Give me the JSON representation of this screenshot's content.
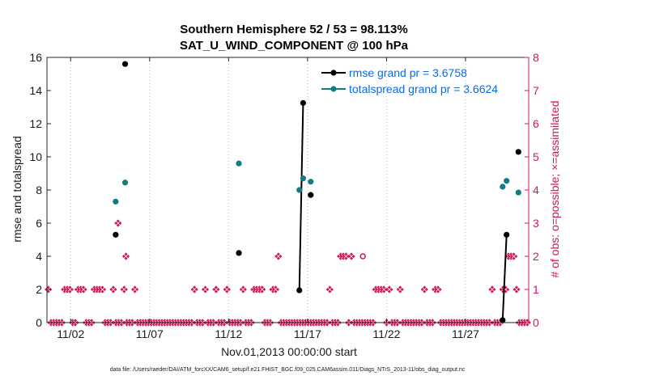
{
  "chart_data": {
    "type": "line",
    "title": "Southern Hemisphere 52 / 53 = 98.113%",
    "subtitle": "SAT_U_WIND_COMPONENT @ 100 hPa",
    "xlabel": "Nov.01,2013 00:00:00 start",
    "ylabel": "rmse and totalspread",
    "ylabel_right": "# of obs: o=possible; ×=assimilated",
    "footnote": "data file: /Users/raeder/DAI/ATM_forcXX/CAM6_setup/f.e21.FHIST_BGC.f09_025.CAM6assim.011/Diags_NTrS_2013-11/obs_diag_output.nc",
    "xlim": [
      0.5,
      31.0
    ],
    "ylim": [
      0,
      16
    ],
    "ylim_right": [
      0,
      8
    ],
    "xticks": [
      2,
      7,
      12,
      17,
      22,
      27
    ],
    "xtick_labels": [
      "11/02",
      "11/07",
      "11/12",
      "11/17",
      "11/22",
      "11/27"
    ],
    "yticks": [
      0,
      2,
      4,
      6,
      8,
      10,
      12,
      14,
      16
    ],
    "yticks_right": [
      0,
      1,
      2,
      3,
      4,
      5,
      6,
      7,
      8
    ],
    "grid": "x-dotted",
    "series": [
      {
        "name": "rmse grand pr = 3.6758",
        "color": "#000000",
        "points": [
          [
            4.85,
            5.3
          ],
          [
            5.45,
            15.6
          ],
          [
            12.65,
            4.2
          ],
          [
            16.48,
            1.95
          ],
          [
            16.72,
            13.25
          ],
          [
            17.2,
            7.7
          ],
          [
            29.35,
            0.15
          ],
          [
            29.6,
            5.3
          ],
          [
            30.35,
            10.3
          ]
        ],
        "segments": [
          [
            [
              16.48,
              1.95
            ],
            [
              16.72,
              13.25
            ]
          ],
          [
            [
              29.35,
              0.15
            ],
            [
              29.6,
              5.3
            ]
          ]
        ]
      },
      {
        "name": "totalspread grand pr = 3.6624",
        "color": "#0f7d82",
        "points": [
          [
            4.85,
            7.3
          ],
          [
            5.45,
            8.45
          ],
          [
            12.65,
            9.6
          ],
          [
            16.48,
            8.0
          ],
          [
            16.72,
            8.7
          ],
          [
            17.2,
            8.5
          ],
          [
            29.35,
            8.2
          ],
          [
            29.6,
            8.55
          ],
          [
            30.35,
            7.85
          ]
        ]
      },
      {
        "name": "obs assimilated",
        "color": "#d4145a",
        "marker": "x",
        "values": [
          1,
          0,
          0,
          0,
          0,
          0,
          1,
          1,
          1,
          0,
          0,
          1,
          1,
          1,
          0,
          0,
          0,
          1,
          1,
          1,
          1,
          0,
          0,
          0,
          1,
          0,
          0,
          0,
          1,
          0,
          0,
          0,
          1,
          0,
          0,
          0,
          0,
          0,
          0,
          0,
          0,
          0,
          0,
          0,
          0,
          0,
          0,
          0,
          0,
          0,
          0,
          0,
          0,
          0,
          1,
          0,
          0,
          0,
          1,
          0,
          0,
          0,
          1,
          0,
          0,
          0,
          1,
          0,
          0,
          0,
          0,
          0,
          1,
          0,
          0,
          0,
          1,
          1,
          1,
          1,
          0,
          0,
          0,
          1,
          1,
          2,
          0,
          0,
          0,
          0,
          0,
          0,
          0,
          0,
          0,
          0,
          0,
          0,
          0,
          0,
          0,
          0,
          0,
          0,
          1,
          0,
          0,
          0,
          2,
          2,
          2,
          0,
          2,
          0,
          0,
          0,
          0,
          0,
          0,
          0,
          0,
          1,
          1,
          1,
          1,
          0,
          1,
          0,
          0,
          0,
          1,
          0,
          0,
          0,
          0,
          0,
          0,
          0,
          0,
          1,
          0,
          0,
          0,
          1,
          1,
          0,
          0,
          0,
          0,
          0,
          0,
          0,
          0,
          0,
          0,
          0,
          0,
          0,
          0,
          0,
          0,
          0,
          0,
          0,
          1,
          0,
          0,
          0,
          1,
          1,
          2,
          2,
          2,
          1,
          0,
          0,
          0,
          0
        ],
        "extra_points": [
          [
            5.0,
            3
          ],
          [
            5.5,
            2
          ]
        ]
      },
      {
        "name": "obs possible",
        "color": "#d4145a",
        "marker": "o",
        "points": [
          [
            20.5,
            2
          ]
        ]
      }
    ],
    "legend": {
      "position": "top-right",
      "entries": [
        "rmse grand pr = 3.6758",
        "totalspread grand pr = 3.6624"
      ]
    }
  }
}
